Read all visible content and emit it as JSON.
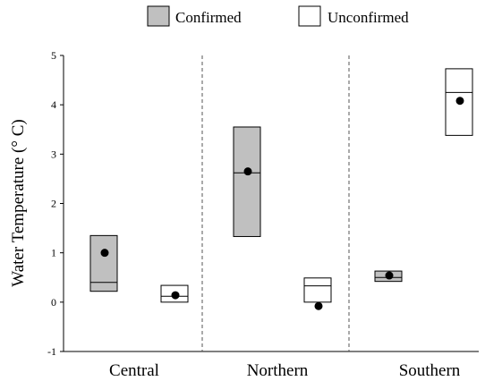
{
  "chart_data": {
    "type": "box",
    "title": "",
    "xlabel": "",
    "ylabel": "Water Temperature (° C)",
    "ylim": [
      -1,
      5
    ],
    "yticks": [
      5,
      4,
      3,
      2,
      1,
      0,
      -1
    ],
    "categories": [
      "Central",
      "Northern",
      "Southern"
    ],
    "legend": {
      "placement": "top-center"
    },
    "series": [
      {
        "name": "Confirmed",
        "color": "#c0c0c0",
        "boxes": [
          {
            "category": "Central",
            "low": 0.22,
            "median": 0.4,
            "high": 1.35,
            "mean": 1.0
          },
          {
            "category": "Northern",
            "low": 1.33,
            "median": 2.62,
            "high": 3.55,
            "mean": 2.65
          },
          {
            "category": "Southern",
            "low": 0.42,
            "median": 0.5,
            "high": 0.63,
            "mean": 0.54
          }
        ]
      },
      {
        "name": "Unconfirmed",
        "color": "#ffffff",
        "boxes": [
          {
            "category": "Central",
            "low": 0.0,
            "median": 0.12,
            "high": 0.34,
            "mean": 0.14
          },
          {
            "category": "Northern",
            "low": 0.0,
            "median": 0.33,
            "high": 0.49,
            "mean": -0.08
          },
          {
            "category": "Southern",
            "low": 3.38,
            "median": 4.25,
            "high": 4.73,
            "mean": 4.08
          }
        ]
      }
    ]
  }
}
